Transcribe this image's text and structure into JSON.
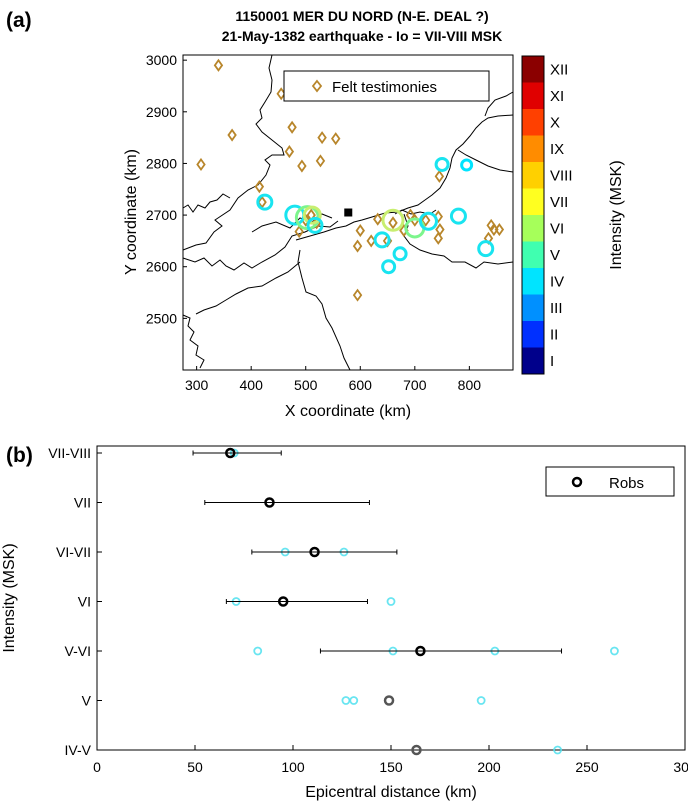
{
  "panel_a": {
    "label": "(a)",
    "title_line1": "1150001 MER DU NORD (N-E. DEAL ?)",
    "title_line2": "21-May-1382 earthquake - Io = VII-VIII MSK",
    "xlabel": "X coordinate (km)",
    "ylabel": "Y coordinate (km)",
    "x_ticks": [
      "300",
      "400",
      "500",
      "600",
      "700",
      "800"
    ],
    "y_ticks": [
      "2500",
      "2600",
      "2700",
      "2800",
      "2900",
      "3000"
    ],
    "legend_label": "Felt testimonies",
    "colorbar_label": "Intensity (MSK)",
    "colorbar_ticks": [
      "XII",
      "XI",
      "X",
      "IX",
      "VIII",
      "VII",
      "VI",
      "V",
      "IV",
      "III",
      "II",
      "I"
    ],
    "colors": {
      "felt": "#b8862b",
      "XII": "#8b0000",
      "XI": "#e00000",
      "X": "#ff4000",
      "IX": "#ff8c00",
      "VIII": "#ffd000",
      "VII": "#ffff20",
      "VI": "#a6ff5a",
      "V": "#40ffb0",
      "IV": "#00e4ff",
      "III": "#0090ff",
      "II": "#0030ff",
      "I": "#00008b",
      "circle_V": "#19e4f0",
      "circle_VI": "#7cf58c",
      "circle_VII": "#c8ee70"
    }
  },
  "panel_b": {
    "label": "(b)",
    "xlabel": "Epicentral distance (km)",
    "ylabel": "Intensity (MSK)",
    "legend_label": "Robs"
  },
  "chart_data": [
    {
      "type": "scatter",
      "title": "1150001 MER DU NORD (N-E. DEAL ?) / 21-May-1382 earthquake - Io = VII-VIII MSK",
      "xlabel": "X coordinate (km)",
      "ylabel": "Y coordinate (km)",
      "xlim": [
        275,
        880
      ],
      "ylim": [
        2400,
        3010
      ],
      "legend": "top-right",
      "epicenter": {
        "x": 578,
        "y": 2705
      },
      "felt_testimonies": [
        [
          340,
          2990
        ],
        [
          455,
          2935
        ],
        [
          365,
          2855
        ],
        [
          475,
          2870
        ],
        [
          530,
          2850
        ],
        [
          555,
          2848
        ],
        [
          470,
          2823
        ],
        [
          493,
          2795
        ],
        [
          527,
          2805
        ],
        [
          308,
          2798
        ],
        [
          415,
          2755
        ],
        [
          420,
          2725
        ],
        [
          488,
          2668
        ],
        [
          500,
          2690
        ],
        [
          510,
          2700
        ],
        [
          520,
          2685
        ],
        [
          600,
          2670
        ],
        [
          595,
          2640
        ],
        [
          620,
          2650
        ],
        [
          632,
          2692
        ],
        [
          595,
          2545
        ],
        [
          650,
          2650
        ],
        [
          660,
          2685
        ],
        [
          680,
          2670
        ],
        [
          692,
          2700
        ],
        [
          720,
          2690
        ],
        [
          743,
          2697
        ],
        [
          746,
          2672
        ],
        [
          743,
          2655
        ],
        [
          700,
          2690
        ],
        [
          745,
          2775
        ],
        [
          835,
          2655
        ],
        [
          845,
          2672
        ],
        [
          855,
          2672
        ],
        [
          840,
          2680
        ]
      ],
      "intensity_circles": [
        {
          "x": 425,
          "y": 2725,
          "i": "V",
          "r": 7
        },
        {
          "x": 480,
          "y": 2700,
          "i": "V",
          "r": 9
        },
        {
          "x": 503,
          "y": 2695,
          "i": "VI",
          "r": 11
        },
        {
          "x": 512,
          "y": 2700,
          "i": "VII",
          "r": 8
        },
        {
          "x": 517,
          "y": 2680,
          "i": "V",
          "r": 7
        },
        {
          "x": 640,
          "y": 2652,
          "i": "V",
          "r": 7
        },
        {
          "x": 660,
          "y": 2690,
          "i": "VII",
          "r": 10
        },
        {
          "x": 673,
          "y": 2625,
          "i": "V",
          "r": 6
        },
        {
          "x": 652,
          "y": 2600,
          "i": "V",
          "r": 6
        },
        {
          "x": 700,
          "y": 2675,
          "i": "VI",
          "r": 9
        },
        {
          "x": 725,
          "y": 2688,
          "i": "V",
          "r": 8
        },
        {
          "x": 780,
          "y": 2698,
          "i": "V",
          "r": 7
        },
        {
          "x": 750,
          "y": 2798,
          "i": "V",
          "r": 6
        },
        {
          "x": 795,
          "y": 2797,
          "i": "IV",
          "r": 5
        },
        {
          "x": 830,
          "y": 2635,
          "i": "V",
          "r": 7
        }
      ]
    },
    {
      "type": "scatter",
      "xlabel": "Epicentral distance (km)",
      "ylabel": "Intensity (MSK)",
      "xlim": [
        0,
        300
      ],
      "x_ticks": [
        0,
        50,
        100,
        150,
        200,
        250,
        300
      ],
      "categories": [
        "VII-VIII",
        "VII",
        "VI-VII",
        "VI",
        "V-VI",
        "V",
        "IV-V"
      ],
      "legend": "top-right",
      "robs": [
        {
          "category": "VII-VIII",
          "mean": 68,
          "min": 49,
          "max": 94
        },
        {
          "category": "VII",
          "mean": 88,
          "min": 55,
          "max": 139
        },
        {
          "category": "VI-VII",
          "mean": 111,
          "min": 79,
          "max": 153
        },
        {
          "category": "VI",
          "mean": 95,
          "min": 66,
          "max": 138
        },
        {
          "category": "V-VI",
          "mean": 165,
          "min": 114,
          "max": 237
        },
        {
          "category": "V",
          "mean": 149,
          "min": null,
          "max": null
        },
        {
          "category": "IV-V",
          "mean": 163,
          "min": null,
          "max": null
        }
      ],
      "observations": [
        {
          "category": "VII-VIII",
          "x": 70
        },
        {
          "category": "VI-VII",
          "x": 96
        },
        {
          "category": "VI-VII",
          "x": 126
        },
        {
          "category": "VI",
          "x": 71
        },
        {
          "category": "VI",
          "x": 150
        },
        {
          "category": "V-VI",
          "x": 82
        },
        {
          "category": "V-VI",
          "x": 151
        },
        {
          "category": "V-VI",
          "x": 203
        },
        {
          "category": "V-VI",
          "x": 264
        },
        {
          "category": "V",
          "x": 127
        },
        {
          "category": "V",
          "x": 131
        },
        {
          "category": "V",
          "x": 196
        },
        {
          "category": "IV-V",
          "x": 235
        }
      ]
    }
  ]
}
